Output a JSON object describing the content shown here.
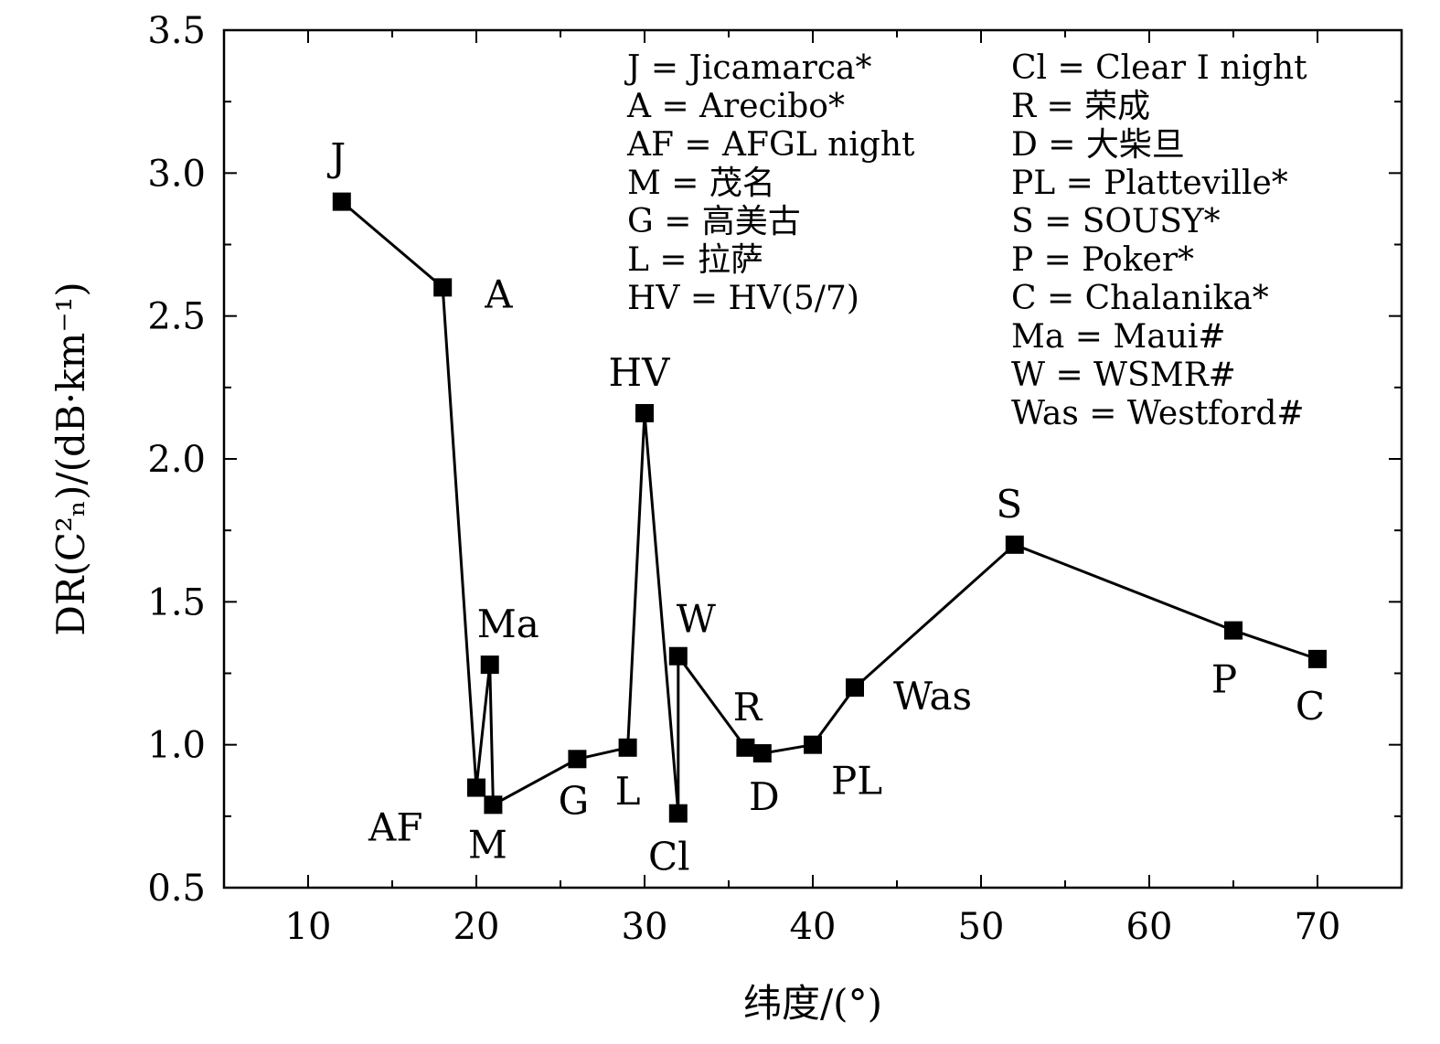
{
  "chart_data": {
    "type": "line",
    "xlabel": "纬度/(°)",
    "ylabel": "DR(C²ₙ)/(dB·km⁻¹)",
    "xlim": [
      5,
      75
    ],
    "ylim": [
      0.5,
      3.5
    ],
    "x_ticks": [
      10,
      20,
      30,
      40,
      50,
      60,
      70
    ],
    "y_ticks": [
      0.5,
      1.0,
      1.5,
      2.0,
      2.5,
      3.0,
      3.5
    ],
    "x_tick_labels": [
      "10",
      "20",
      "30",
      "40",
      "50",
      "60",
      "70"
    ],
    "y_tick_labels": [
      "0.5",
      "1.0",
      "1.5",
      "2.0",
      "2.5",
      "3.0",
      "3.5"
    ],
    "grid": false,
    "legend_position": "top-right",
    "series": [
      {
        "points": [
          {
            "label": "J",
            "x": 12.0,
            "y": 2.9
          },
          {
            "label": "A",
            "x": 18.0,
            "y": 2.6
          },
          {
            "label": "AF",
            "x": 20.0,
            "y": 0.85
          },
          {
            "label": "Ma",
            "x": 20.8,
            "y": 1.28
          },
          {
            "label": "M",
            "x": 21.0,
            "y": 0.79
          },
          {
            "label": "G",
            "x": 26.0,
            "y": 0.95
          },
          {
            "label": "L",
            "x": 29.0,
            "y": 0.99
          },
          {
            "label": "HV",
            "x": 30.0,
            "y": 2.16
          },
          {
            "label": "Cl",
            "x": 32.0,
            "y": 0.76
          },
          {
            "label": "W",
            "x": 32.0,
            "y": 1.31
          },
          {
            "label": "R",
            "x": 36.0,
            "y": 0.99
          },
          {
            "label": "D",
            "x": 37.0,
            "y": 0.97
          },
          {
            "label": "PL",
            "x": 40.0,
            "y": 1.0
          },
          {
            "label": "Was",
            "x": 42.5,
            "y": 1.2
          },
          {
            "label": "S",
            "x": 52.0,
            "y": 1.7
          },
          {
            "label": "P",
            "x": 65.0,
            "y": 1.4
          },
          {
            "label": "C",
            "x": 70.0,
            "y": 1.3
          }
        ]
      }
    ],
    "legend": {
      "left": [
        "J = Jicamarca*",
        "A = Arecibo*",
        "AF = AFGL night",
        "M = 茂名",
        "G = 高美古",
        "L = 拉萨",
        "HV = HV(5/7)"
      ],
      "right": [
        "Cl = Clear I night",
        "R = 荣成",
        "D = 大柴旦",
        "PL = Platteville*",
        "S = SOUSY*",
        "P = Poker*",
        "C = Chalanika*",
        "Ma = Maui#",
        "W = WSMR#",
        "Was = Westford#"
      ]
    },
    "colors": {
      "line": "#000000",
      "marker": "#000000"
    }
  }
}
